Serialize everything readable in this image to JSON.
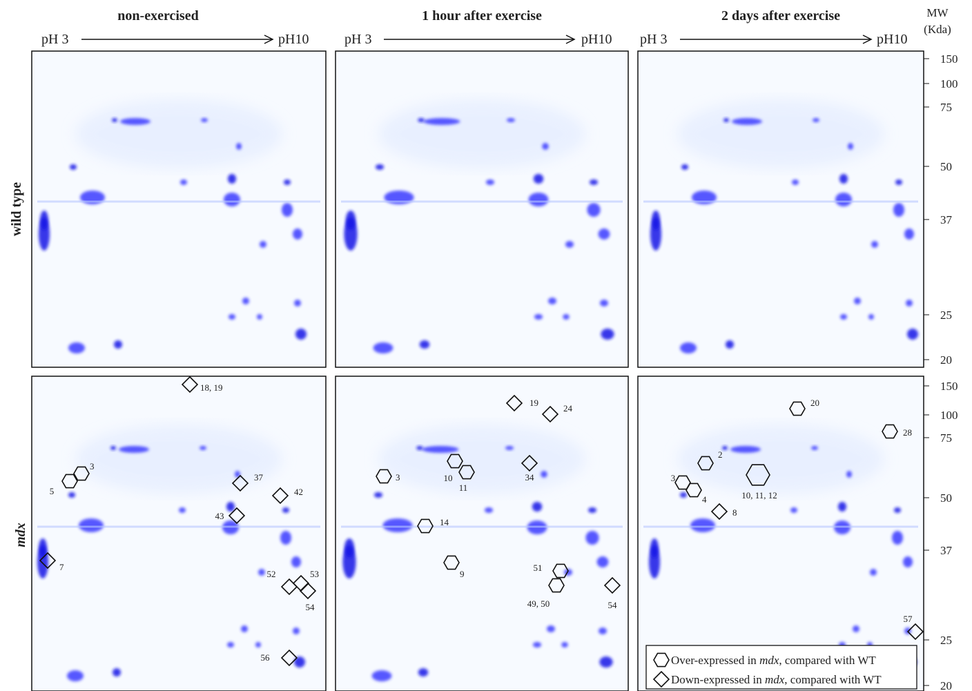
{
  "columns": [
    {
      "title": "non-exercised",
      "ph_start": "pH 3",
      "ph_end": "pH10"
    },
    {
      "title": "1 hour after exercise",
      "ph_start": "pH 3",
      "ph_end": "pH10"
    },
    {
      "title": "2 days after exercise",
      "ph_start": "pH 3",
      "ph_end": "pH10"
    }
  ],
  "rows": [
    {
      "label": "wild type"
    },
    {
      "label": "mdx",
      "markers": [
        [
          {
            "shape": "hexagon",
            "label": "3"
          },
          {
            "shape": "hexagon",
            "label": "5"
          },
          {
            "shape": "diamond",
            "label": "7"
          },
          {
            "shape": "diamond",
            "label": "18, 19"
          },
          {
            "shape": "diamond",
            "label": "37"
          },
          {
            "shape": "diamond",
            "label": "42"
          },
          {
            "shape": "diamond",
            "label": "43"
          },
          {
            "shape": "diamond",
            "label": "52"
          },
          {
            "shape": "diamond",
            "label": "53"
          },
          {
            "shape": "diamond",
            "label": "54"
          },
          {
            "shape": "diamond",
            "label": "56"
          }
        ],
        [
          {
            "shape": "hexagon",
            "label": "3"
          },
          {
            "shape": "diamond",
            "label": "19"
          },
          {
            "shape": "diamond",
            "label": "24"
          },
          {
            "shape": "hexagon",
            "label": "10"
          },
          {
            "shape": "hexagon",
            "label": "11"
          },
          {
            "shape": "diamond",
            "label": "34"
          },
          {
            "shape": "hexagon",
            "label": "14"
          },
          {
            "shape": "hexagon",
            "label": "9"
          },
          {
            "shape": "hexagon",
            "label": "51"
          },
          {
            "shape": "hexagon",
            "label": "49, 50"
          },
          {
            "shape": "diamond",
            "label": "54"
          }
        ],
        [
          {
            "shape": "hexagon",
            "label": "20"
          },
          {
            "shape": "hexagon",
            "label": "28"
          },
          {
            "shape": "hexagon",
            "label": "2"
          },
          {
            "shape": "hexagon",
            "label": "3"
          },
          {
            "shape": "hexagon",
            "label": "4"
          },
          {
            "shape": "hexagon",
            "label": "10, 11, 12"
          },
          {
            "shape": "diamond",
            "label": "8"
          },
          {
            "shape": "diamond",
            "label": "57"
          }
        ]
      ]
    }
  ],
  "mw_axis": {
    "title": "MW",
    "unit": "(Kda)",
    "labels": [
      "150",
      "100",
      "75",
      "50",
      "37",
      "25",
      "20"
    ]
  },
  "legend": [
    {
      "shape": "hexagon",
      "prefix": "Over-expressed in ",
      "italic": "mdx",
      "suffix": ", compared with WT"
    },
    {
      "shape": "diamond",
      "prefix": "Down-expressed in ",
      "italic": "mdx",
      "suffix": ", compared with WT"
    }
  ]
}
